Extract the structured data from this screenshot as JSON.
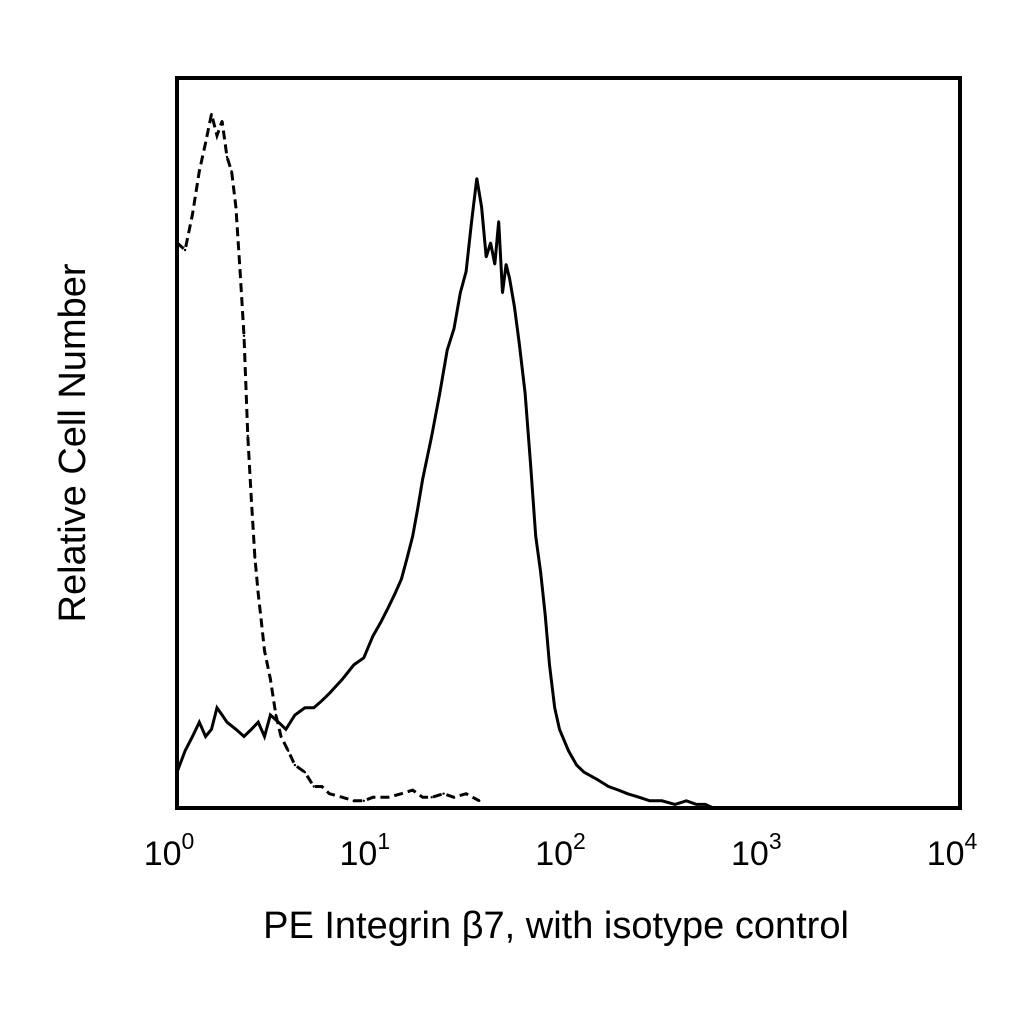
{
  "chart_data": {
    "type": "line",
    "title": "",
    "xlabel": "PE Integrin β7, with isotype control",
    "ylabel": "Relative Cell Number",
    "x_scale": "log",
    "xlim": [
      1,
      10000
    ],
    "ylim": [
      0,
      100
    ],
    "grid": false,
    "legend": "none",
    "x_ticks": [
      {
        "value": 1,
        "base": "10",
        "exp": "0"
      },
      {
        "value": 10,
        "base": "10",
        "exp": "1"
      },
      {
        "value": 100,
        "base": "10",
        "exp": "2"
      },
      {
        "value": 1000,
        "base": "10",
        "exp": "3"
      },
      {
        "value": 10000,
        "base": "10",
        "exp": "4"
      }
    ],
    "series": [
      {
        "style": "dashed",
        "color": "#000000",
        "x": [
          1.0,
          1.1,
          1.2,
          1.3,
          1.4,
          1.5,
          1.6,
          1.7,
          1.8,
          1.9,
          2.0,
          2.1,
          2.2,
          2.3,
          2.4,
          2.5,
          2.6,
          2.7,
          2.8,
          3.0,
          3.2,
          3.4,
          3.7,
          4.0,
          4.5,
          5.0,
          5.5,
          6.0,
          7.0,
          8.0,
          9.0,
          10,
          12,
          14,
          16,
          18,
          20,
          23,
          26,
          30,
          35
        ],
        "y": [
          79,
          78,
          83,
          89,
          93,
          97,
          94,
          96,
          91,
          89,
          84,
          75,
          66,
          52,
          43,
          35,
          30,
          26,
          22,
          18,
          13,
          10,
          8,
          6,
          5,
          3,
          3,
          2,
          1.5,
          1,
          1,
          1.5,
          1.5,
          2,
          2.5,
          1.5,
          1.5,
          2,
          1.5,
          2,
          1
        ]
      },
      {
        "style": "solid",
        "color": "#000000",
        "x": [
          1.0,
          1.1,
          1.2,
          1.3,
          1.4,
          1.5,
          1.6,
          1.7,
          1.8,
          2.0,
          2.2,
          2.4,
          2.6,
          2.8,
          3.0,
          3.3,
          3.6,
          4.0,
          4.5,
          5.0,
          5.5,
          6.0,
          7.0,
          8.0,
          9.0,
          10,
          11,
          12,
          13,
          14,
          15,
          16,
          17,
          18,
          20,
          22,
          24,
          26,
          28,
          30,
          32,
          34,
          36,
          38,
          40,
          42,
          44,
          46,
          48,
          50,
          53,
          56,
          60,
          64,
          68,
          72,
          76,
          80,
          85,
          90,
          100,
          110,
          120,
          140,
          160,
          180,
          200,
          230,
          260,
          300,
          350,
          400,
          450,
          500,
          550
        ],
        "y": [
          5,
          8,
          10,
          12,
          10,
          11,
          14,
          13,
          12,
          11,
          10,
          11,
          12,
          10,
          13,
          12,
          11,
          13,
          14,
          14,
          15,
          16,
          18,
          20,
          21,
          24,
          26,
          28,
          30,
          32,
          35,
          38,
          42,
          46,
          52,
          58,
          64,
          67,
          72,
          75,
          82,
          88,
          84,
          77,
          79,
          76,
          82,
          72,
          76,
          74,
          70,
          65,
          58,
          48,
          38,
          33,
          27,
          20,
          14,
          11,
          8,
          6,
          5,
          4,
          3,
          2.5,
          2,
          1.5,
          1,
          1,
          0.5,
          1,
          0.5,
          0.5,
          0
        ]
      }
    ]
  }
}
